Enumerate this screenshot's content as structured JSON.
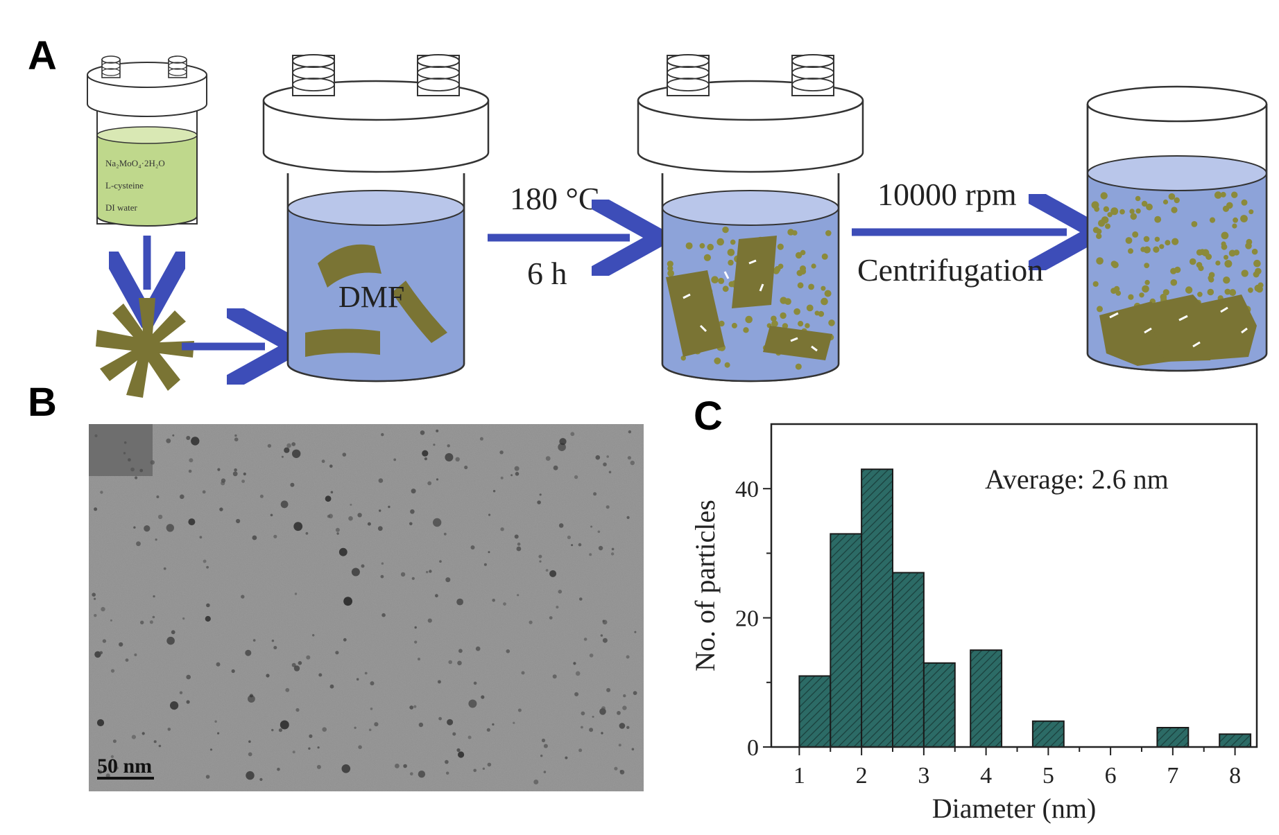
{
  "panels": {
    "a": {
      "label": "A",
      "vial_text": [
        "Na₂MoO₄·2H₂O",
        "L-cysteine",
        "DI water"
      ],
      "solvent": "DMF",
      "step1_top": "180 °C",
      "step1_bottom": "6 h",
      "step2_top": "10000 rpm",
      "step2_bottom": "Centrifugation"
    },
    "b": {
      "label": "B",
      "scale_bar": "50 nm"
    },
    "c": {
      "label": "C"
    }
  },
  "colors": {
    "liquid": "#8da3d9",
    "liquid_top": "#b9c6ea",
    "flake": "#7a7434",
    "dot": "#8b8a3a",
    "arrow": "#3d4db8",
    "vial_liquid": "#bfd88c",
    "bar_fill": "#2c6b66",
    "tem_bg": "#8f8f8f"
  },
  "chart_data": {
    "type": "bar",
    "xlabel": "Diameter (nm)",
    "ylabel": "No. of particles",
    "annotation": "Average: 2.6 nm",
    "xlim": [
      0.55,
      8.35
    ],
    "ylim": [
      0,
      50
    ],
    "xticks": [
      1,
      2,
      3,
      4,
      5,
      6,
      7,
      8
    ],
    "yticks": [
      0,
      20,
      40
    ],
    "bin_width": 0.5,
    "bins": [
      {
        "x": 1.25,
        "value": 11
      },
      {
        "x": 1.75,
        "value": 33
      },
      {
        "x": 2.25,
        "value": 43
      },
      {
        "x": 2.75,
        "value": 27
      },
      {
        "x": 3.25,
        "value": 13
      },
      {
        "x": 4.0,
        "value": 15
      },
      {
        "x": 5.0,
        "value": 4
      },
      {
        "x": 7.0,
        "value": 3
      },
      {
        "x": 8.0,
        "value": 2
      }
    ],
    "grid": false,
    "bar_pattern": "hatched"
  }
}
